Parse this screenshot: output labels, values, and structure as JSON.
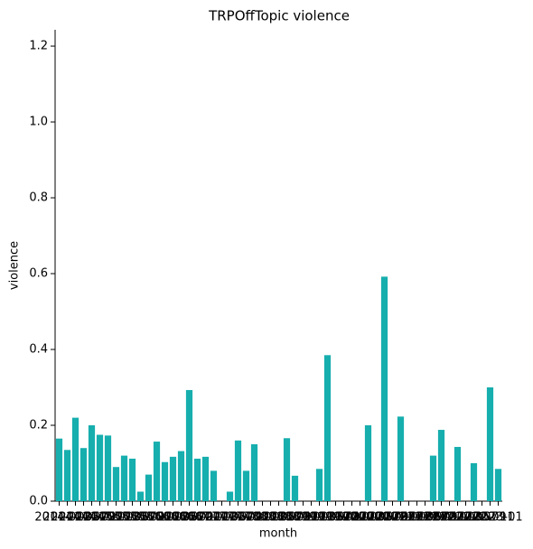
{
  "chart_data": {
    "type": "bar",
    "title": "TRPOffTopic violence",
    "x_label": "month",
    "y_label": "violence",
    "categories": [
      "2014-01",
      "2014-03",
      "2014-05",
      "2014-07",
      "2014-09",
      "2014-11",
      "2015-01",
      "2015-03",
      "2015-05",
      "2015-07",
      "2015-09",
      "2015-11",
      "2016-01",
      "2016-03",
      "2016-05",
      "2016-07",
      "2016-09",
      "2016-11",
      "2017-01",
      "2017-03",
      "2017-05",
      "2017-07",
      "2017-09",
      "2017-11",
      "2018-01",
      "2018-03",
      "2018-05",
      "2018-07",
      "2018-09",
      "2018-11",
      "2019-01",
      "2019-03",
      "2019-05",
      "2019-07",
      "2019-09",
      "2019-11",
      "2020-01",
      "2020-03",
      "2020-05",
      "2020-07",
      "2020-09",
      "2020-11",
      "2021-01",
      "2021-03",
      "2021-05",
      "2021-07",
      "2021-09",
      "2021-11",
      "2022-01",
      "2022-03",
      "2022-05",
      "2022-07",
      "2022-09",
      "2022-11",
      "2023-01"
    ],
    "values": [
      0.165,
      0.135,
      0.22,
      0.14,
      0.2,
      0.175,
      0.173,
      0.09,
      0.12,
      0.112,
      0.025,
      0.07,
      0.157,
      0.103,
      0.117,
      0.132,
      0.293,
      0.112,
      0.117,
      0.08,
      0,
      0.025,
      0.16,
      0.08,
      0.15,
      0,
      0,
      0,
      0.166,
      0.067,
      0,
      0,
      0.085,
      0.385,
      0,
      0,
      0,
      0,
      0.2,
      0,
      0.592,
      0,
      0.223,
      0,
      0,
      0,
      0.12,
      0.188,
      0,
      0.143,
      0,
      0.1,
      0,
      0.3,
      0.085
    ],
    "color": "#17aeae",
    "ylim": [
      0,
      1.243
    ],
    "yticks": [
      {
        "value": 0,
        "label": "0.0"
      },
      0.2,
      0.4,
      0.6,
      0.8,
      {
        "value": 1,
        "label": "1.0"
      },
      1.2
    ]
  }
}
